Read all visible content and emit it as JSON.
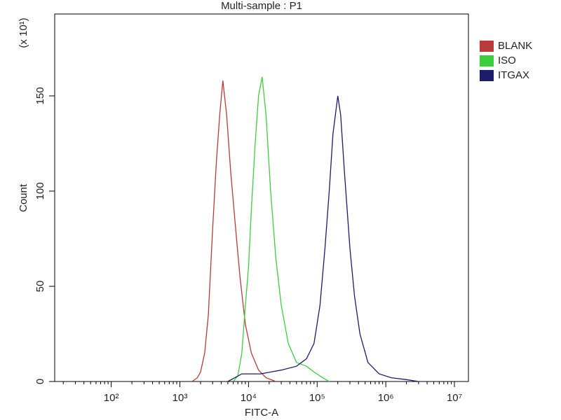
{
  "chart_data": {
    "type": "histogram-overlay",
    "title": "Multi-sample : P1",
    "xlabel": "FITC-A",
    "ylabel": "Count",
    "y_multiplier": "(x 10¹)",
    "xscale": "log",
    "xlim": [
      15,
      16000000
    ],
    "ylim": [
      0,
      193
    ],
    "xticks": [
      {
        "value": 100,
        "label": "10²"
      },
      {
        "value": 1000,
        "label": "10³"
      },
      {
        "value": 10000,
        "label": "10⁴"
      },
      {
        "value": 100000,
        "label": "10⁵"
      },
      {
        "value": 1000000,
        "label": "10⁶"
      },
      {
        "value": 10000000,
        "label": "10⁷"
      }
    ],
    "yticks": [
      0,
      50,
      100,
      150
    ],
    "legend": "upper right outside",
    "series": [
      {
        "name": "BLANK",
        "color": "#b83a3a",
        "x": [
          1500,
          1800,
          2000,
          2300,
          2600,
          3000,
          3400,
          3800,
          4230,
          4800,
          5500,
          6500,
          7500,
          9000,
          11000,
          14000,
          18000,
          25000
        ],
        "values": [
          0,
          2,
          5,
          15,
          35,
          80,
          115,
          140,
          158,
          140,
          110,
          80,
          55,
          30,
          15,
          6,
          2,
          0
        ]
      },
      {
        "name": "ISO",
        "color": "#3ccf3c",
        "x": [
          6000,
          7000,
          8000,
          9000,
          10000,
          11000,
          12500,
          14000,
          15800,
          18000,
          21000,
          25000,
          30000,
          38000,
          50000,
          70000,
          90000,
          120000,
          150000
        ],
        "values": [
          0,
          3,
          15,
          40,
          60,
          90,
          125,
          150,
          160,
          140,
          100,
          65,
          40,
          20,
          10,
          8,
          5,
          2,
          0
        ]
      },
      {
        "name": "ITGAX",
        "color": "#1c1c6a",
        "x": [
          5000,
          8000,
          15000,
          30000,
          50000,
          70000,
          90000,
          110000,
          130000,
          150000,
          170000,
          200000,
          220000,
          250000,
          300000,
          350000,
          420000,
          550000,
          800000,
          1200000,
          2000000,
          3000000
        ],
        "values": [
          0,
          4,
          4,
          6,
          8,
          12,
          20,
          40,
          70,
          100,
          130,
          150,
          140,
          110,
          70,
          45,
          25,
          10,
          4,
          2,
          1,
          0
        ]
      }
    ]
  }
}
